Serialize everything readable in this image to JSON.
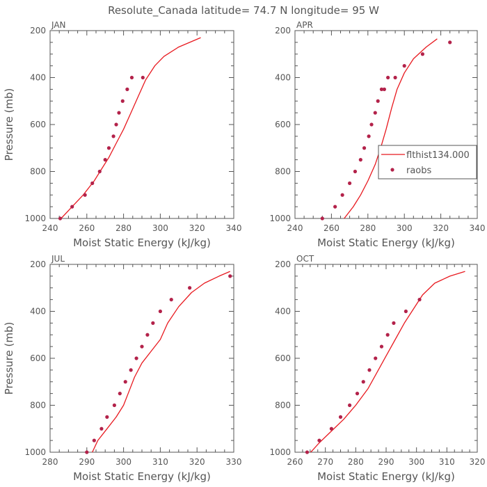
{
  "figure_title": "Resolute_Canada   latitude=  74.7 N longitude=  95 W",
  "colors": {
    "model": "#e8191f",
    "obs": "#b3224a",
    "axis": "#555555"
  },
  "chart_data": [
    {
      "type": "line",
      "panel": "JAN",
      "title": "JAN",
      "xlabel": "Moist Static Energy (kJ/kg)",
      "ylabel": "Pressure (mb)",
      "xlim": [
        240,
        340
      ],
      "ylim": [
        1000,
        200
      ],
      "xticks": [
        240,
        260,
        280,
        300,
        320,
        340
      ],
      "yticks": [
        200,
        400,
        600,
        800,
        1000
      ],
      "series": [
        {
          "name": "flthist134.000",
          "style": "line",
          "x": [
            246,
            252,
            258,
            264,
            268,
            272,
            276,
            280,
            284,
            288,
            292,
            297,
            302,
            310,
            322
          ],
          "y": [
            1000,
            950,
            900,
            840,
            790,
            740,
            680,
            620,
            550,
            480,
            410,
            350,
            310,
            270,
            230
          ]
        },
        {
          "name": "raobs",
          "style": "markers",
          "x": [
            245.5,
            252,
            259,
            263,
            267,
            270,
            272,
            274.5,
            276,
            277.5,
            279.5,
            282,
            284.5,
            290.5
          ],
          "y": [
            1000,
            950,
            900,
            850,
            800,
            750,
            700,
            650,
            600,
            550,
            500,
            450,
            400,
            400
          ]
        }
      ]
    },
    {
      "type": "line",
      "panel": "APR",
      "title": "APR",
      "xlabel": "Moist Static Energy (kJ/kg)",
      "ylabel": "",
      "xlim": [
        240,
        340
      ],
      "ylim": [
        1000,
        200
      ],
      "xticks": [
        240,
        260,
        280,
        300,
        320,
        340
      ],
      "yticks": [
        200,
        400,
        600,
        800,
        1000
      ],
      "legend": {
        "position": "middle-right",
        "entries": [
          "flthist134.000",
          "raobs"
        ]
      },
      "series": [
        {
          "name": "flthist134.000",
          "style": "line",
          "x": [
            265,
            267,
            272,
            276,
            280,
            284,
            287,
            290,
            293,
            296,
            300,
            305,
            312,
            318
          ],
          "y": [
            1030,
            1000,
            950,
            900,
            840,
            770,
            700,
            620,
            530,
            450,
            380,
            320,
            270,
            235
          ]
        },
        {
          "name": "raobs",
          "style": "markers",
          "x": [
            255,
            262,
            266,
            270,
            273,
            276,
            278,
            280.5,
            282,
            284,
            285.5,
            287.5,
            289,
            291,
            295,
            300,
            310,
            325
          ],
          "y": [
            1000,
            950,
            900,
            850,
            800,
            750,
            700,
            650,
            600,
            550,
            500,
            450,
            450,
            400,
            400,
            350,
            300,
            250
          ]
        }
      ]
    },
    {
      "type": "line",
      "panel": "JUL",
      "title": "JUL",
      "xlabel": "Moist Static Energy (kJ/kg)",
      "ylabel": "Pressure (mb)",
      "xlim": [
        280,
        330
      ],
      "ylim": [
        1000,
        200
      ],
      "xticks": [
        280,
        290,
        300,
        310,
        320,
        330
      ],
      "yticks": [
        200,
        400,
        600,
        800,
        1000
      ],
      "series": [
        {
          "name": "flthist134.000",
          "style": "line",
          "x": [
            290.5,
            291.5,
            293,
            295.5,
            298,
            300,
            301.5,
            303,
            305,
            307.5,
            310,
            312,
            315,
            318.5,
            322,
            326,
            329
          ],
          "y": [
            1010,
            1000,
            950,
            900,
            850,
            800,
            740,
            680,
            620,
            570,
            520,
            450,
            380,
            320,
            280,
            250,
            230
          ]
        },
        {
          "name": "raobs",
          "style": "markers",
          "x": [
            290,
            292,
            294,
            295.5,
            297.5,
            299,
            300.5,
            302,
            303.5,
            305,
            306.5,
            308,
            310,
            313,
            318,
            329
          ],
          "y": [
            1000,
            950,
            900,
            850,
            800,
            750,
            700,
            650,
            600,
            550,
            500,
            450,
            400,
            350,
            300,
            250
          ]
        }
      ]
    },
    {
      "type": "line",
      "panel": "OCT",
      "title": "OCT",
      "xlabel": "Moist Static Energy (kJ/kg)",
      "ylabel": "",
      "xlim": [
        260,
        320
      ],
      "ylim": [
        1000,
        200
      ],
      "xticks": [
        260,
        270,
        280,
        290,
        300,
        310,
        320
      ],
      "yticks": [
        200,
        400,
        600,
        800,
        1000
      ],
      "series": [
        {
          "name": "flthist134.000",
          "style": "line",
          "x": [
            264.5,
            268,
            272,
            276,
            280,
            284,
            287,
            290,
            293,
            296,
            299,
            302,
            306,
            311,
            316
          ],
          "y": [
            1010,
            960,
            910,
            860,
            800,
            730,
            660,
            590,
            520,
            450,
            390,
            330,
            280,
            250,
            230
          ]
        },
        {
          "name": "raobs",
          "style": "markers",
          "x": [
            264,
            268,
            272,
            275,
            278,
            280.5,
            282.5,
            284.5,
            286.5,
            288.5,
            290.5,
            292.5,
            296.5,
            301
          ],
          "y": [
            1000,
            950,
            900,
            850,
            800,
            750,
            700,
            650,
            600,
            550,
            500,
            450,
            400,
            350
          ]
        }
      ]
    }
  ]
}
